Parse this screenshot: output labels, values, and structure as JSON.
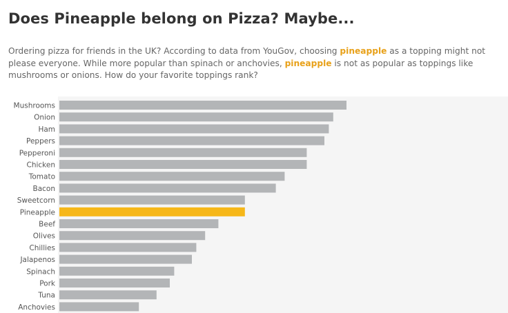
{
  "header": {
    "title": "Does Pineapple belong on Pizza? Maybe..."
  },
  "description": {
    "part1": "Ordering pizza for friends in the UK? According to data from YouGov, choosing ",
    "highlight1": "pineapple",
    "part2": " as a topping might not please everyone. While more popular than spinach or anchovies, ",
    "highlight2": "pineapple",
    "part3": " is not as popular as toppings like mushrooms or onions. How do your favorite toppings rank?"
  },
  "colors": {
    "bar": "#B3B5B7",
    "highlight": "#F6B719",
    "highlight_text": "#E8A11A",
    "panel": "#F5F5F5"
  },
  "chart_data": {
    "type": "bar",
    "orientation": "horizontal",
    "categories": [
      "Mushrooms",
      "Onion",
      "Ham",
      "Peppers",
      "Pepperoni",
      "Chicken",
      "Tomato",
      "Bacon",
      "Sweetcorn",
      "Pineapple",
      "Beef",
      "Olives",
      "Chillies",
      "Jalapenos",
      "Spinach",
      "Pork",
      "Tuna",
      "Anchovies"
    ],
    "values": [
      65,
      62,
      61,
      60,
      56,
      56,
      51,
      49,
      42,
      42,
      36,
      33,
      31,
      30,
      26,
      25,
      22,
      18
    ],
    "highlight": "Pineapple",
    "xlim": [
      0,
      100
    ],
    "title": "",
    "xlabel": "",
    "ylabel": "",
    "grid": false,
    "legend": "none"
  }
}
